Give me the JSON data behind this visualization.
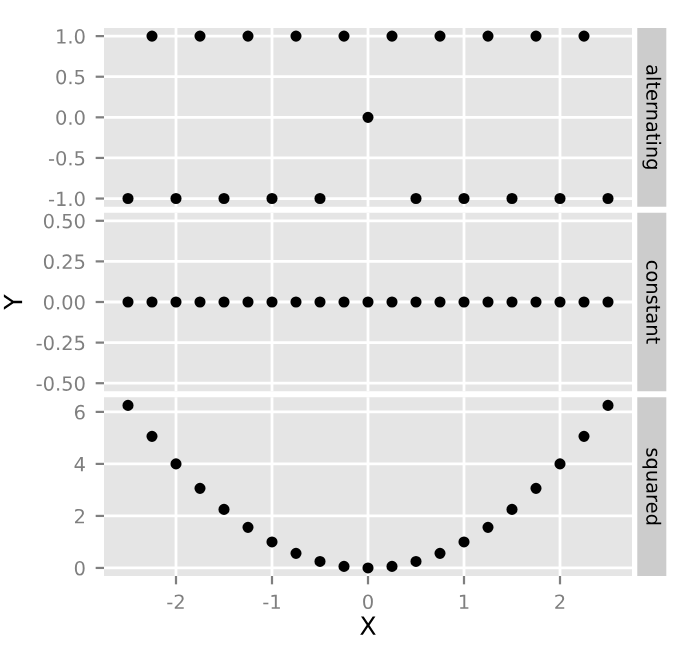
{
  "chart_data": [
    {
      "type": "scatter",
      "y2label": "alternating",
      "x": [
        -2.5,
        -2.25,
        -2,
        -1.75,
        -1.5,
        -1.25,
        -1,
        -0.75,
        -0.5,
        -0.25,
        0,
        0.25,
        0.5,
        0.75,
        1,
        1.25,
        1.5,
        1.75,
        2,
        2.25,
        2.5
      ],
      "series": [
        {
          "color": "#000000",
          "values": [
            -1,
            1,
            -1,
            1,
            -1,
            1,
            -1,
            1,
            -1,
            1,
            0,
            1,
            -1,
            1,
            -1,
            1,
            -1,
            1,
            -1,
            1,
            -1
          ]
        }
      ],
      "xlim": [
        -2.75,
        2.75
      ],
      "xticks": [
        -2,
        -1,
        0,
        1,
        2
      ],
      "ylim": [
        -1.1,
        1.1
      ],
      "yticks": [
        {
          "value": -1,
          "label": "-1.0"
        },
        {
          "value": -0.5,
          "label": "-0.5"
        },
        {
          "value": 0,
          "label": "0.0"
        },
        {
          "value": 0.5,
          "label": "0.5"
        },
        {
          "value": 1,
          "label": "1.0"
        }
      ],
      "tick_labels": "y",
      "grid": true,
      "marker": "circle"
    },
    {
      "type": "scatter",
      "y2label": "constant",
      "ylabel": "Y",
      "x": [
        -2.5,
        -2.25,
        -2,
        -1.75,
        -1.5,
        -1.25,
        -1,
        -0.75,
        -0.5,
        -0.25,
        0,
        0.25,
        0.5,
        0.75,
        1,
        1.25,
        1.5,
        1.75,
        2,
        2.25,
        2.5
      ],
      "series": [
        {
          "color": "#000000",
          "values": [
            0,
            0,
            0,
            0,
            0,
            0,
            0,
            0,
            0,
            0,
            0,
            0,
            0,
            0,
            0,
            0,
            0,
            0,
            0,
            0,
            0
          ]
        }
      ],
      "xlim": [
        -2.75,
        2.75
      ],
      "xticks": [
        -2,
        -1,
        0,
        1,
        2
      ],
      "ylim": [
        -0.55,
        0.55
      ],
      "yticks": [
        {
          "value": -0.5,
          "label": "-0.50"
        },
        {
          "value": -0.25,
          "label": "-0.25"
        },
        {
          "value": 0,
          "label": "0.00"
        },
        {
          "value": 0.25,
          "label": "0.25"
        },
        {
          "value": 0.5,
          "label": "0.50"
        }
      ],
      "tick_labels": "y",
      "grid": true,
      "marker": "circle"
    },
    {
      "type": "scatter",
      "y2label": "squared",
      "xlabel": "X",
      "x": [
        -2.5,
        -2.25,
        -2,
        -1.75,
        -1.5,
        -1.25,
        -1,
        -0.75,
        -0.5,
        -0.25,
        0,
        0.25,
        0.5,
        0.75,
        1,
        1.25,
        1.5,
        1.75,
        2,
        2.25,
        2.5
      ],
      "series": [
        {
          "color": "#000000",
          "values": [
            6.25,
            5.06,
            4,
            3.06,
            2.25,
            1.56,
            1,
            0.56,
            0.25,
            0.06,
            0,
            0.06,
            0.25,
            0.56,
            1,
            1.56,
            2.25,
            3.06,
            4,
            5.06,
            6.25
          ]
        }
      ],
      "xlim": [
        -2.75,
        2.75
      ],
      "xticks": [
        -2,
        -1,
        0,
        1,
        2
      ],
      "ylim": [
        -0.31,
        6.56
      ],
      "yticks": [
        0,
        2,
        4,
        6
      ],
      "grid": true,
      "marker": "circle"
    }
  ]
}
